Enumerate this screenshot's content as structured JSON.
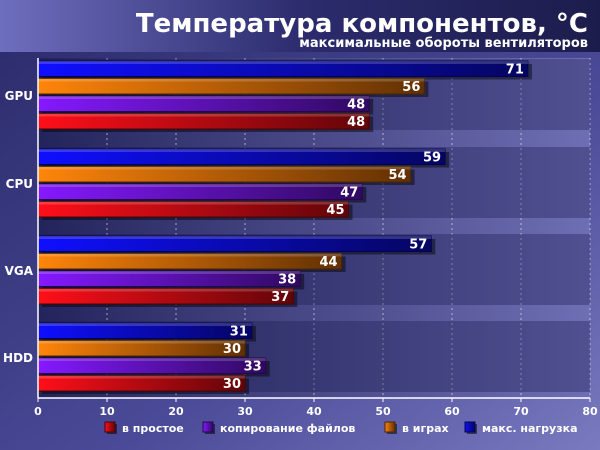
{
  "chart_data": {
    "type": "bar",
    "orientation": "horizontal",
    "title": "Температура компонентов, °C",
    "subtitle": "максимальные обороты вентиляторов",
    "categories": [
      "GPU",
      "CPU",
      "VGA",
      "HDD"
    ],
    "series": [
      {
        "name": "макс. нагрузка",
        "color": "#0c0cd8",
        "values": [
          71,
          59,
          57,
          31
        ]
      },
      {
        "name": "в играх",
        "color": "#d86a08",
        "values": [
          56,
          54,
          44,
          30
        ]
      },
      {
        "name": "копирование файлов",
        "color": "#6a14d8",
        "values": [
          48,
          47,
          38,
          33
        ]
      },
      {
        "name": "в простое",
        "color": "#d80c14",
        "values": [
          48,
          45,
          37,
          30
        ]
      }
    ],
    "legend_order": [
      "в простое",
      "копирование файлов",
      "в играх",
      "макс. нагрузка"
    ],
    "xlim": [
      0,
      80
    ],
    "xticks": [
      "0",
      "10",
      "20",
      "30",
      "40",
      "50",
      "60",
      "70",
      "80"
    ],
    "grid": true,
    "legend_position": "bottom"
  }
}
